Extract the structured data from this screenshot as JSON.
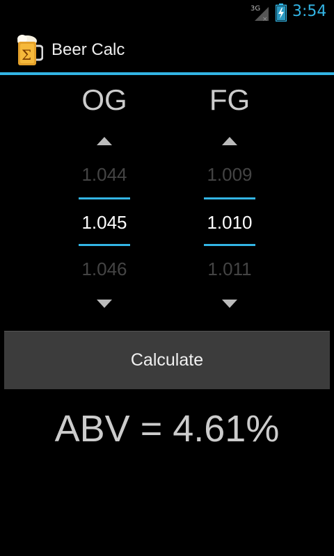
{
  "status_bar": {
    "network": "3G",
    "time": "3:54",
    "accent_color": "#33b5e5"
  },
  "app": {
    "title": "Beer Calc",
    "icon": "beer-mug-icon"
  },
  "pickers": {
    "og": {
      "label": "OG",
      "prev": "1.044",
      "current": "1.045",
      "next": "1.046"
    },
    "fg": {
      "label": "FG",
      "prev": "1.009",
      "current": "1.010",
      "next": "1.011"
    }
  },
  "calculate_label": "Calculate",
  "result_text": "ABV = 4.61%"
}
